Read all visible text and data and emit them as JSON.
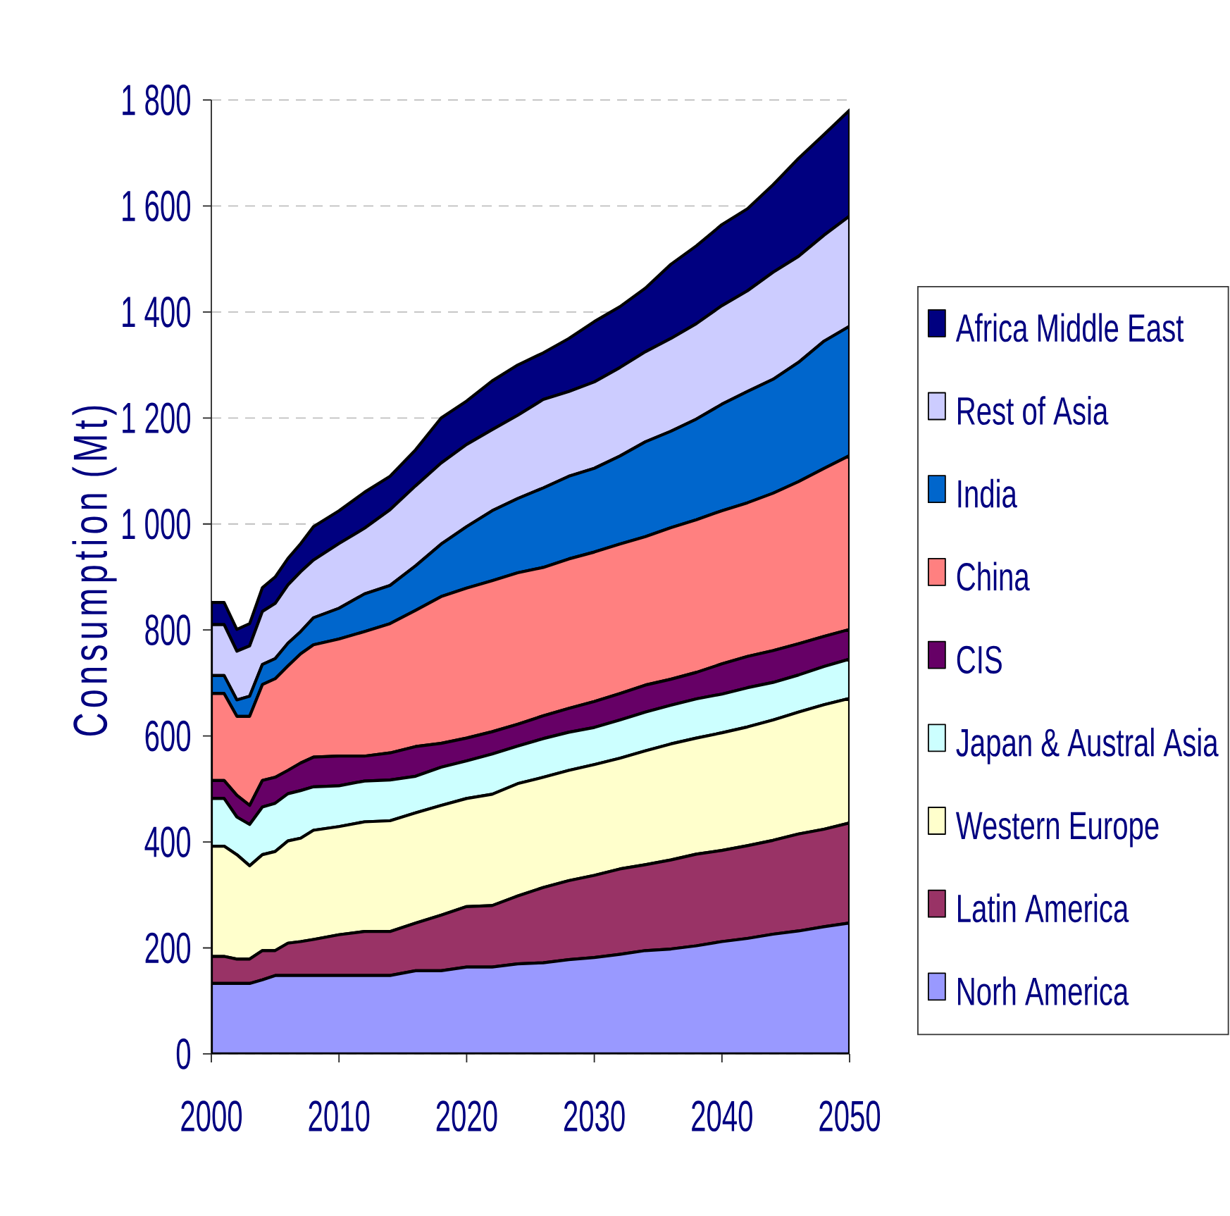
{
  "chart_data": {
    "type": "area",
    "stacked": true,
    "ylabel": "Consumption (Mt)",
    "x": [
      2000,
      2001,
      2002,
      2003,
      2004,
      2005,
      2006,
      2007,
      2008,
      2010,
      2012,
      2014,
      2016,
      2018,
      2020,
      2022,
      2024,
      2026,
      2028,
      2030,
      2032,
      2034,
      2036,
      2038,
      2040,
      2042,
      2044,
      2046,
      2048,
      2050
    ],
    "series": [
      {
        "name": "Norh America",
        "color": "#9999ff",
        "values": [
          133,
          133,
          133,
          133,
          140,
          148,
          148,
          148,
          148,
          148,
          148,
          148,
          157,
          157,
          164,
          164,
          170,
          172,
          178,
          182,
          188,
          195,
          198,
          204,
          212,
          218,
          226,
          232,
          240,
          247
        ]
      },
      {
        "name": "Latin America",
        "color": "#993366",
        "values": [
          51,
          51,
          46,
          46,
          55,
          47,
          61,
          64,
          68,
          77,
          83,
          83,
          90,
          105,
          114,
          116,
          128,
          142,
          149,
          155,
          161,
          162,
          168,
          173,
          172,
          175,
          177,
          183,
          184,
          189
        ]
      },
      {
        "name": "Western Europe",
        "color": "#ffffcc",
        "values": [
          208,
          208,
          197,
          176,
          181,
          187,
          193,
          195,
          206,
          204,
          207,
          209,
          208,
          207,
          204,
          210,
          212,
          208,
          208,
          209,
          209,
          215,
          219,
          219,
          222,
          224,
          227,
          230,
          235,
          235
        ]
      },
      {
        "name": "Japan & Austral Asia",
        "color": "#ccffff",
        "values": [
          90,
          90,
          71,
          78,
          90,
          91,
          89,
          90,
          82,
          77,
          77,
          77,
          69,
          72,
          71,
          76,
          71,
          73,
          72,
          70,
          72,
          73,
          73,
          74,
          73,
          74,
          71,
          70,
          72,
          74
        ]
      },
      {
        "name": "CIS",
        "color": "#660066",
        "values": [
          34,
          34,
          41,
          36,
          50,
          49,
          44,
          52,
          56,
          56,
          47,
          51,
          56,
          45,
          43,
          42,
          41,
          43,
          45,
          49,
          50,
          51,
          49,
          50,
          57,
          59,
          60,
          59,
          57,
          56
        ]
      },
      {
        "name": "China",
        "color": "#ff8080",
        "values": [
          164,
          164,
          149,
          168,
          181,
          186,
          197,
          206,
          212,
          221,
          235,
          244,
          257,
          277,
          283,
          285,
          286,
          280,
          282,
          282,
          282,
          280,
          286,
          288,
          289,
          290,
          297,
          306,
          317,
          328
        ]
      },
      {
        "name": "India",
        "color": "#0066cc",
        "values": [
          34,
          34,
          31,
          38,
          38,
          38,
          43,
          42,
          51,
          58,
          71,
          72,
          84,
          99,
          116,
          132,
          140,
          150,
          156,
          158,
          166,
          179,
          182,
          190,
          201,
          210,
          215,
          225,
          240,
          244
        ]
      },
      {
        "name": "Rest of Asia",
        "color": "#ccccff",
        "values": [
          96,
          96,
          92,
          95,
          100,
          104,
          110,
          113,
          109,
          122,
          124,
          143,
          151,
          153,
          155,
          153,
          157,
          167,
          160,
          163,
          167,
          170,
          175,
          180,
          186,
          190,
          202,
          200,
          200,
          208
        ]
      },
      {
        "name": "Africa Middle East",
        "color": "#000080",
        "values": [
          42,
          42,
          41,
          42,
          45,
          50,
          50,
          53,
          63,
          62,
          68,
          63,
          68,
          85,
          82,
          92,
          95,
          88,
          100,
          114,
          115,
          120,
          140,
          147,
          153,
          155,
          165,
          185,
          190,
          200
        ]
      }
    ],
    "xlim": [
      2000,
      2050
    ],
    "xticks": [
      2000,
      2010,
      2020,
      2030,
      2040,
      2050
    ],
    "ylim": [
      0,
      1800
    ],
    "yticks": [
      0,
      200,
      400,
      600,
      800,
      {
        "value": 1000,
        "label": "1 000"
      },
      {
        "value": 1200,
        "label": "1 200"
      },
      {
        "value": 1400,
        "label": "1 400"
      },
      {
        "value": 1600,
        "label": "1 600"
      },
      {
        "value": 1800,
        "label": "1 800"
      }
    ],
    "grid": "y",
    "legend": "right"
  }
}
